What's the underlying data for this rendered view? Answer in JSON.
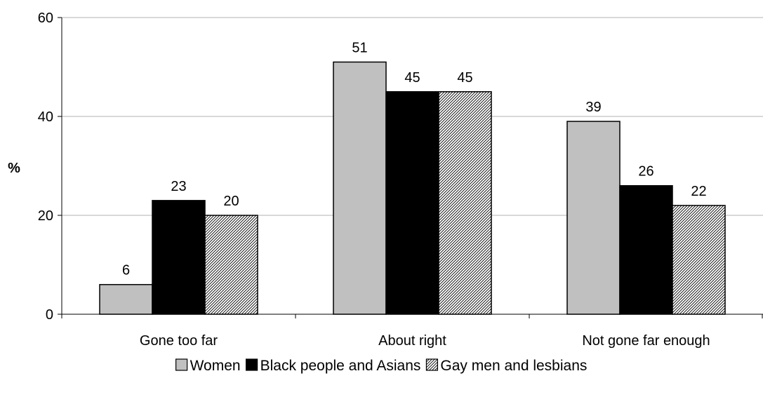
{
  "chart_data": {
    "type": "bar",
    "title": "",
    "xlabel": "",
    "ylabel": "%",
    "ylim": [
      0,
      60
    ],
    "yticks": [
      0,
      20,
      40,
      60
    ],
    "grid": true,
    "legend_position": "bottom",
    "categories": [
      "Gone too far",
      "About right",
      "Not gone far enough"
    ],
    "series": [
      {
        "name": "Women",
        "values": [
          6,
          51,
          39
        ],
        "color": "#c0c0c0",
        "pattern": "solid"
      },
      {
        "name": "Black people and Asians",
        "values": [
          23,
          45,
          26
        ],
        "color": "#000000",
        "pattern": "solid"
      },
      {
        "name": "Gay men and lesbians",
        "values": [
          20,
          45,
          22
        ],
        "color": "#ffffff",
        "pattern": "diagonal-hatch"
      }
    ]
  }
}
